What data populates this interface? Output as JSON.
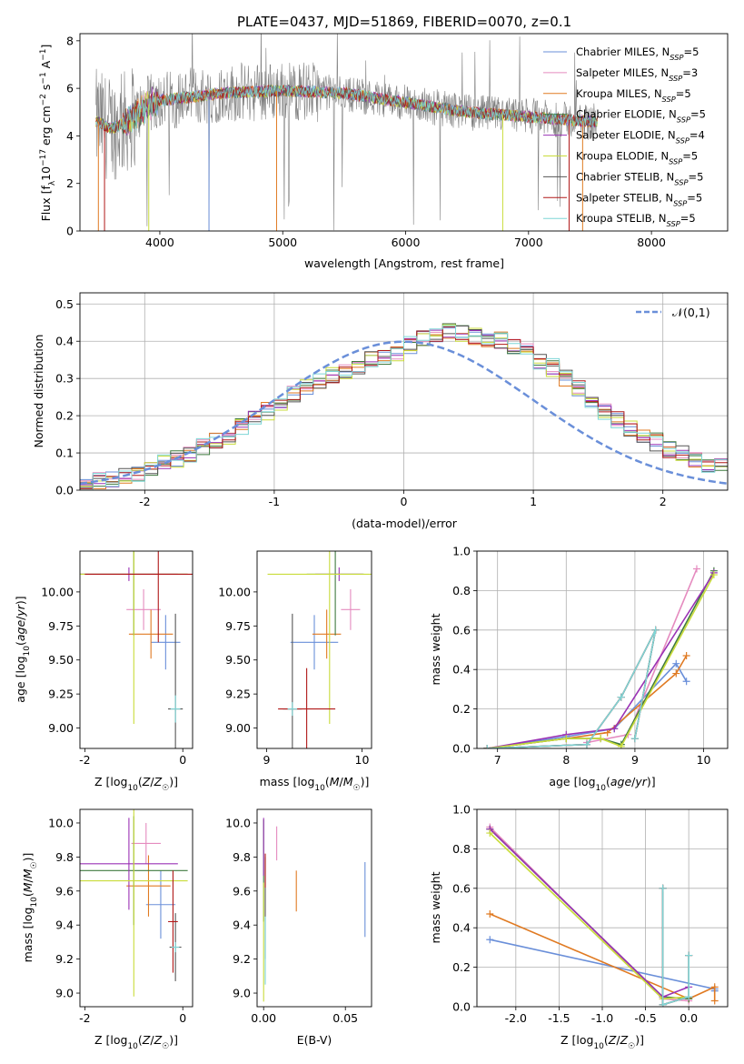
{
  "figure": {
    "title": "PLATE=0437, MJD=51869, FIBERID=0070, z=0.1"
  },
  "colors": {
    "Chabrier MILES": "#6a8fd9",
    "Salpeter MILES": "#e58bbf",
    "Kroupa MILES": "#e07a22",
    "Chabrier ELODIE": "#3f7a3f",
    "Salpeter ELODIE": "#9a32b5",
    "Kroupa ELODIE": "#c9dc3a",
    "Chabrier STELIB": "#555555",
    "Salpeter STELIB": "#b01818",
    "Kroupa STELIB": "#7ed6d6",
    "normal": "#6a8fd9",
    "data": "#808080",
    "grid": "#b0b0b0"
  },
  "chart_data": [
    {
      "type": "line",
      "panel": "spectrum",
      "xlabel": "wavelength [Angstrom, rest frame]",
      "ylabel": "Flux [fλ10⁻¹⁷ erg cm⁻² s⁻¹ A⁻¹]",
      "xlim": [
        3350,
        8620
      ],
      "ylim": [
        0,
        8.3
      ],
      "xticks": [
        4000,
        5000,
        6000,
        7000,
        8000
      ],
      "yticks": [
        0,
        2,
        4,
        6,
        8
      ],
      "grid": false,
      "legend_position": "upper-right",
      "series": [
        {
          "name": "Chabrier MILES, N_SSP=5"
        },
        {
          "name": "Salpeter MILES, N_SSP=3"
        },
        {
          "name": "Kroupa MILES, N_SSP=5"
        },
        {
          "name": "Chabrier ELODIE, N_SSP=5"
        },
        {
          "name": "Salpeter ELODIE, N_SSP=4"
        },
        {
          "name": "Kroupa ELODIE, N_SSP=5"
        },
        {
          "name": "Chabrier STELIB, N_SSP=5"
        },
        {
          "name": "Salpeter STELIB, N_SSP=5"
        },
        {
          "name": "Kroupa STELIB, N_SSP=5"
        }
      ],
      "continuum": {
        "x": [
          3500,
          3600,
          3700,
          3800,
          3900,
          4000,
          4200,
          4500,
          5000,
          5500,
          6000,
          6500,
          7000,
          7500
        ],
        "y": [
          4.6,
          4.3,
          4.5,
          4.9,
          5.3,
          5.5,
          5.6,
          5.8,
          5.9,
          5.8,
          5.4,
          5.0,
          4.8,
          4.6
        ]
      }
    },
    {
      "type": "histogram",
      "panel": "residuals",
      "xlabel": "(data-model)/error",
      "ylabel": "Normed distribution",
      "xlim": [
        -2.5,
        2.5
      ],
      "ylim": [
        0,
        0.53
      ],
      "xticks": [
        -2,
        -1,
        0,
        1,
        2
      ],
      "yticks": [
        0.0,
        0.1,
        0.2,
        0.3,
        0.4,
        0.5
      ],
      "grid": true,
      "legend": "𝒩(0,1)",
      "legend_position": "upper-right",
      "bin_width": 0.1,
      "base_values": [
        0.025,
        0.028,
        0.032,
        0.038,
        0.046,
        0.058,
        0.07,
        0.085,
        0.1,
        0.115,
        0.13,
        0.148,
        0.168,
        0.19,
        0.212,
        0.235,
        0.258,
        0.275,
        0.29,
        0.305,
        0.32,
        0.335,
        0.35,
        0.36,
        0.37,
        0.39,
        0.41,
        0.42,
        0.43,
        0.42,
        0.41,
        0.405,
        0.4,
        0.39,
        0.37,
        0.35,
        0.33,
        0.3,
        0.275,
        0.245,
        0.215,
        0.19,
        0.17,
        0.15,
        0.13,
        0.11,
        0.095,
        0.08,
        0.07,
        0.06
      ]
    },
    {
      "type": "errorbar",
      "panel": "age-vs-Z",
      "xlabel": "Z [log10(Z/Z☉)]",
      "ylabel": "age  [log10(age/yr)]",
      "xlim": [
        -2.1,
        0.2
      ],
      "ylim": [
        8.85,
        10.3
      ],
      "xticks": [
        -2,
        0
      ],
      "yticks": [
        9.0,
        9.25,
        9.5,
        9.75,
        10.0
      ],
      "points": [
        {
          "series": "Chabrier MILES",
          "x": -0.35,
          "y": 9.63,
          "xerr": 0.3,
          "yerr": 0.2
        },
        {
          "series": "Salpeter MILES",
          "x": -0.8,
          "y": 9.87,
          "xerr": 0.35,
          "yerr": 0.15
        },
        {
          "series": "Kroupa MILES",
          "x": -0.65,
          "y": 9.69,
          "xerr": 0.45,
          "yerr": 0.18
        },
        {
          "series": "Chabrier ELODIE",
          "x": -1.0,
          "y": 10.13,
          "xerr": 1.1,
          "yerr": 0.45
        },
        {
          "series": "Salpeter ELODIE",
          "x": -1.1,
          "y": 10.13,
          "xerr": 1.0,
          "yerr": 0.05
        },
        {
          "series": "Kroupa ELODIE",
          "x": -1.0,
          "y": 10.13,
          "xerr": 1.1,
          "yerr": 1.1
        },
        {
          "series": "Chabrier STELIB",
          "x": -0.15,
          "y": 9.14,
          "xerr": 0.15,
          "yerr": 0.7
        },
        {
          "series": "Salpeter STELIB",
          "x": -0.5,
          "y": 10.13,
          "xerr": 1.5,
          "yerr": 0.5
        },
        {
          "series": "Kroupa STELIB",
          "x": -0.15,
          "y": 9.14,
          "xerr": 0.1,
          "yerr": 0.1
        }
      ]
    },
    {
      "type": "errorbar",
      "panel": "age-vs-mass",
      "xlabel": "mass [log10(M/M☉)]",
      "xlim": [
        8.9,
        10.1
      ],
      "ylim": [
        8.85,
        10.3
      ],
      "xticks": [
        9,
        10
      ],
      "yticks": [
        9.0,
        9.25,
        9.5,
        9.75,
        10.0
      ],
      "points": [
        {
          "series": "Chabrier MILES",
          "x": 9.5,
          "y": 9.63,
          "xerr": 0.25,
          "yerr": 0.2
        },
        {
          "series": "Salpeter MILES",
          "x": 9.88,
          "y": 9.87,
          "xerr": 0.1,
          "yerr": 0.15
        },
        {
          "series": "Kroupa MILES",
          "x": 9.63,
          "y": 9.69,
          "xerr": 0.15,
          "yerr": 0.18
        },
        {
          "series": "Chabrier ELODIE",
          "x": 9.72,
          "y": 10.13,
          "xerr": 0.3,
          "yerr": 0.45
        },
        {
          "series": "Salpeter ELODIE",
          "x": 9.76,
          "y": 10.13,
          "xerr": 0.25,
          "yerr": 0.05
        },
        {
          "series": "Kroupa ELODIE",
          "x": 9.66,
          "y": 10.13,
          "xerr": 0.65,
          "yerr": 1.1
        },
        {
          "series": "Chabrier STELIB",
          "x": 9.27,
          "y": 9.14,
          "xerr": 0.1,
          "yerr": 0.7
        },
        {
          "series": "Salpeter STELIB",
          "x": 9.42,
          "y": 9.14,
          "xerr": 0.3,
          "yerr": 0.3
        },
        {
          "series": "Kroupa STELIB",
          "x": 9.27,
          "y": 9.14,
          "xerr": 0.05,
          "yerr": 0.05
        }
      ]
    },
    {
      "type": "line",
      "panel": "mass-weight-vs-age",
      "xlabel": "age  [log10(age/yr)]",
      "ylabel": "mass weight",
      "xlim": [
        6.7,
        10.35
      ],
      "ylim": [
        0,
        1.0
      ],
      "xticks": [
        7,
        8,
        9,
        10
      ],
      "yticks": [
        0.0,
        0.2,
        0.4,
        0.6,
        0.8,
        1.0
      ],
      "grid": true,
      "series": [
        {
          "series": "Chabrier MILES",
          "x": [
            6.85,
            8.0,
            8.7,
            9.6,
            9.75
          ],
          "y": [
            0.0,
            0.06,
            0.1,
            0.43,
            0.34
          ]
        },
        {
          "series": "Salpeter MILES",
          "x": [
            8.3,
            8.9,
            9.9
          ],
          "y": [
            0.03,
            0.07,
            0.91
          ]
        },
        {
          "series": "Kroupa MILES",
          "x": [
            6.85,
            8.0,
            8.6,
            9.6,
            9.75
          ],
          "y": [
            0.0,
            0.05,
            0.08,
            0.38,
            0.47
          ]
        },
        {
          "series": "Chabrier ELODIE",
          "x": [
            6.85,
            8.0,
            8.5,
            8.8,
            10.15
          ],
          "y": [
            0.0,
            0.05,
            0.05,
            0.02,
            0.9
          ]
        },
        {
          "series": "Salpeter ELODIE",
          "x": [
            6.85,
            8.0,
            8.7,
            10.15
          ],
          "y": [
            0.0,
            0.07,
            0.1,
            0.89
          ]
        },
        {
          "series": "Kroupa ELODIE",
          "x": [
            6.85,
            8.0,
            8.5,
            8.8,
            10.15
          ],
          "y": [
            0.0,
            0.05,
            0.05,
            0.01,
            0.88
          ]
        },
        {
          "series": "Chabrier STELIB",
          "x": [
            6.85,
            8.3,
            8.8,
            9.3,
            9.0
          ],
          "y": [
            0.0,
            0.02,
            0.26,
            0.6,
            0.05
          ]
        },
        {
          "series": "Salpeter STELIB",
          "x": [
            6.85,
            8.3,
            8.8,
            9.3,
            9.0
          ],
          "y": [
            0.0,
            0.02,
            0.26,
            0.6,
            0.05
          ]
        },
        {
          "series": "Kroupa STELIB",
          "x": [
            6.85,
            8.3,
            8.8,
            9.3,
            9.0
          ],
          "y": [
            0.0,
            0.02,
            0.26,
            0.6,
            0.05
          ]
        }
      ]
    },
    {
      "type": "errorbar",
      "panel": "mass-vs-Z",
      "xlabel": "Z [log10(Z/Z☉)]",
      "ylabel": "mass [log10(M/M☉)]",
      "xlim": [
        -2.1,
        0.2
      ],
      "ylim": [
        8.92,
        10.08
      ],
      "xticks": [
        -2,
        0
      ],
      "yticks": [
        9.0,
        9.2,
        9.4,
        9.6,
        9.8,
        10.0
      ],
      "points": [
        {
          "series": "Chabrier MILES",
          "x": -0.45,
          "y": 9.52,
          "xerr": 0.3,
          "yerr": 0.2
        },
        {
          "series": "Salpeter MILES",
          "x": -0.75,
          "y": 9.88,
          "xerr": 0.3,
          "yerr": 0.12
        },
        {
          "series": "Kroupa MILES",
          "x": -0.7,
          "y": 9.63,
          "xerr": 0.45,
          "yerr": 0.18
        },
        {
          "series": "Chabrier ELODIE",
          "x": -1.0,
          "y": 9.72,
          "xerr": 1.1,
          "yerr": 0.32
        },
        {
          "series": "Salpeter ELODIE",
          "x": -1.1,
          "y": 9.76,
          "xerr": 1.0,
          "yerr": 0.27
        },
        {
          "series": "Kroupa ELODIE",
          "x": -1.0,
          "y": 9.66,
          "xerr": 1.1,
          "yerr": 0.68
        },
        {
          "series": "Chabrier STELIB",
          "x": -0.15,
          "y": 9.27,
          "xerr": 0.12,
          "yerr": 0.2
        },
        {
          "series": "Salpeter STELIB",
          "x": -0.2,
          "y": 9.42,
          "xerr": 0.1,
          "yerr": 0.3
        },
        {
          "series": "Kroupa STELIB",
          "x": -0.15,
          "y": 9.27,
          "xerr": 0.08,
          "yerr": 0.03
        }
      ]
    },
    {
      "type": "errorbar",
      "panel": "mass-vs-EBV",
      "xlabel": "E(B-V)",
      "xlim": [
        -0.004,
        0.066
      ],
      "ylim": [
        8.92,
        10.08
      ],
      "xticks": [
        0.0,
        0.05
      ],
      "yticks": [
        9.0,
        9.2,
        9.4,
        9.6,
        9.8,
        10.0
      ],
      "points": [
        {
          "series": "Chabrier MILES",
          "x": 0.062,
          "y": 9.55,
          "xerr": 0,
          "yerr": 0.22
        },
        {
          "series": "Salpeter MILES",
          "x": 0.008,
          "y": 9.88,
          "xerr": 0,
          "yerr": 0.1
        },
        {
          "series": "Kroupa MILES",
          "x": 0.02,
          "y": 9.6,
          "xerr": 0,
          "yerr": 0.12
        },
        {
          "series": "Chabrier ELODIE",
          "x": 0.0,
          "y": 9.72,
          "xerr": 0,
          "yerr": 0.3
        },
        {
          "series": "Salpeter ELODIE",
          "x": 0.0,
          "y": 9.86,
          "xerr": 0,
          "yerr": 0.17
        },
        {
          "series": "Kroupa ELODIE",
          "x": 0.0,
          "y": 9.3,
          "xerr": 0,
          "yerr": 0.35
        },
        {
          "series": "Chabrier STELIB",
          "x": 0.001,
          "y": 9.5,
          "xerr": 0,
          "yerr": 0.3
        },
        {
          "series": "Salpeter STELIB",
          "x": 0.001,
          "y": 9.72,
          "xerr": 0,
          "yerr": 0.1
        },
        {
          "series": "Kroupa STELIB",
          "x": 0.001,
          "y": 9.25,
          "xerr": 0,
          "yerr": 0.2
        }
      ]
    },
    {
      "type": "line",
      "panel": "mass-weight-vs-Z",
      "xlabel": "Z [log10(Z/Z☉)]",
      "ylabel": "mass weight",
      "xlim": [
        -2.45,
        0.45
      ],
      "ylim": [
        0,
        1.0
      ],
      "xticks": [
        -2.0,
        -1.5,
        -1.0,
        -0.5,
        0.0
      ],
      "yticks": [
        0.0,
        0.2,
        0.4,
        0.6,
        0.8,
        1.0
      ],
      "grid": true,
      "series": [
        {
          "series": "Chabrier MILES",
          "x": [
            -2.3,
            0.3,
            0.3
          ],
          "y": [
            0.34,
            0.09,
            0.08
          ]
        },
        {
          "series": "Salpeter MILES",
          "x": [
            -2.3,
            -0.3,
            0.0
          ],
          "y": [
            0.91,
            0.04,
            0.03
          ]
        },
        {
          "series": "Kroupa MILES",
          "x": [
            -2.3,
            0.0,
            0.3,
            0.3
          ],
          "y": [
            0.47,
            0.04,
            0.1,
            0.03
          ]
        },
        {
          "series": "Chabrier ELODIE",
          "x": [
            -2.3,
            -0.3,
            0.0
          ],
          "y": [
            0.9,
            0.05,
            0.04
          ]
        },
        {
          "series": "Salpeter ELODIE",
          "x": [
            -2.3,
            -0.3,
            0.0
          ],
          "y": [
            0.9,
            0.05,
            0.1
          ]
        },
        {
          "series": "Kroupa ELODIE",
          "x": [
            -2.3,
            -0.3,
            0.0
          ],
          "y": [
            0.88,
            0.04,
            0.05
          ]
        },
        {
          "series": "Chabrier STELIB",
          "x": [
            -0.3,
            -0.3,
            0.0,
            0.0
          ],
          "y": [
            0.6,
            0.01,
            0.05,
            0.26
          ]
        },
        {
          "series": "Salpeter STELIB",
          "x": [
            -0.3,
            -0.3,
            0.0,
            0.0
          ],
          "y": [
            0.6,
            0.01,
            0.05,
            0.26
          ]
        },
        {
          "series": "Kroupa STELIB",
          "x": [
            -0.3,
            -0.3,
            0.0,
            0.0
          ],
          "y": [
            0.6,
            0.01,
            0.05,
            0.26
          ]
        }
      ]
    }
  ]
}
